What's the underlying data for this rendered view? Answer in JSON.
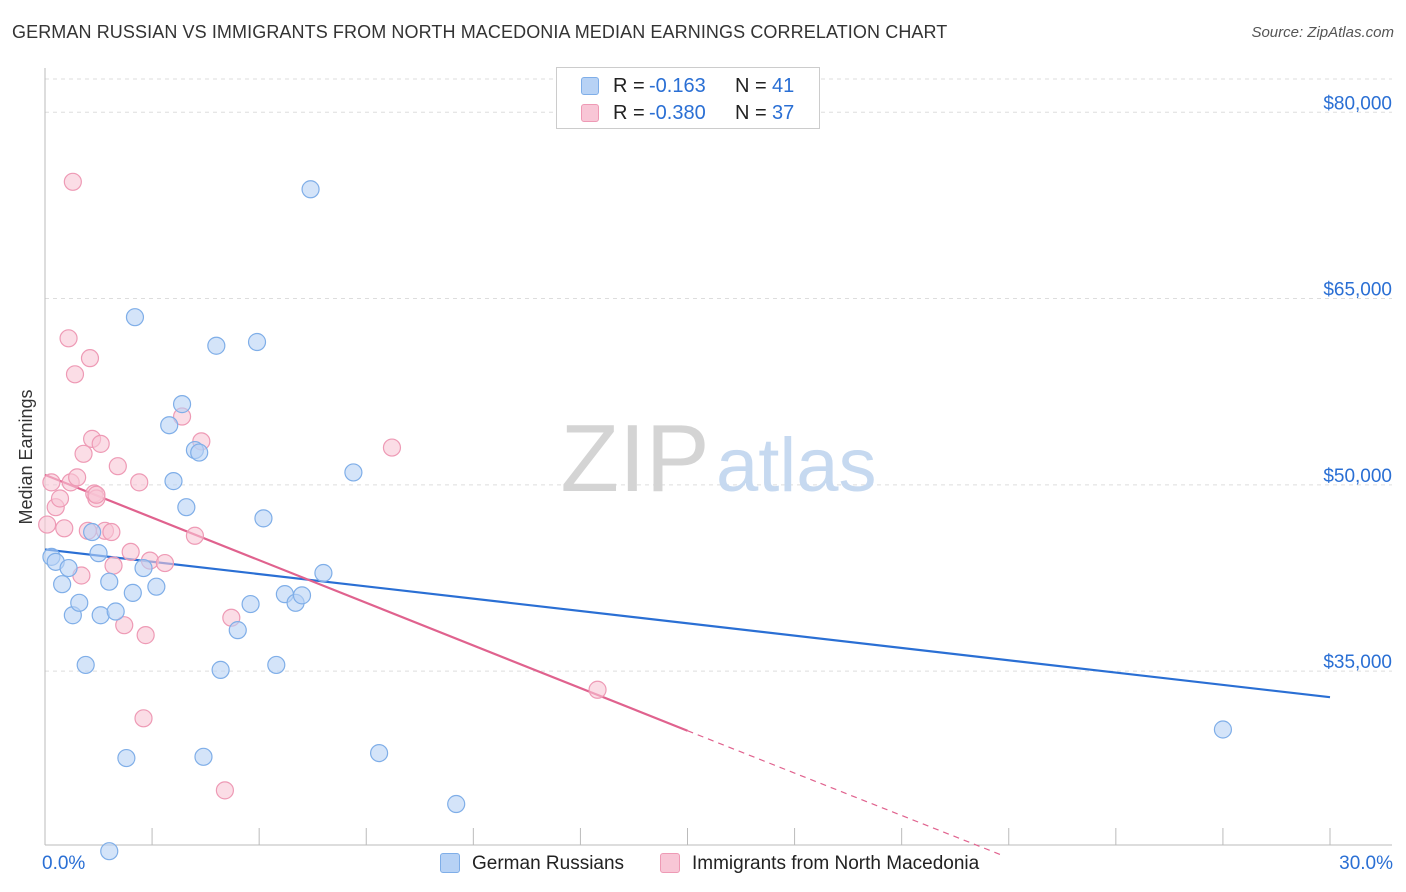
{
  "header": {
    "title": "GERMAN RUSSIAN VS IMMIGRANTS FROM NORTH MACEDONIA MEDIAN EARNINGS CORRELATION CHART",
    "source": "Source: ZipAtlas.com"
  },
  "watermark": {
    "zip": "ZIP",
    "atlas": "atlas"
  },
  "legend": {
    "rows": [
      {
        "r_label": "R =",
        "r_value": "-0.163",
        "n_label": "N =",
        "n_value": "41"
      },
      {
        "r_label": "R =",
        "r_value": "-0.380",
        "n_label": "N =",
        "n_value": "37"
      }
    ]
  },
  "colors": {
    "blue_fill": "#b7d2f5",
    "blue_stroke": "#7faee8",
    "blue_line": "#2a6fd4",
    "pink_fill": "#f8c6d6",
    "pink_stroke": "#ee9ab5",
    "pink_line": "#e0628e",
    "grid": "#dddddd",
    "axis_text": "#2a6fd4"
  },
  "chart_data": {
    "type": "scatter",
    "title": "GERMAN RUSSIAN VS IMMIGRANTS FROM NORTH MACEDONIA MEDIAN EARNINGS CORRELATION CHART",
    "xlabel": "",
    "ylabel": "Median Earnings",
    "xlim": [
      0,
      30
    ],
    "ylim": [
      21000,
      83000
    ],
    "x_tick_labels": [
      {
        "value": 0,
        "label": "0.0%"
      },
      {
        "value": 30,
        "label": "30.0%"
      }
    ],
    "y_tick_labels": [
      {
        "value": 35000,
        "label": "$35,000"
      },
      {
        "value": 50000,
        "label": "$50,000"
      },
      {
        "value": 65000,
        "label": "$65,000"
      },
      {
        "value": 80000,
        "label": "$80,000"
      }
    ],
    "series": [
      {
        "name": "German Russians",
        "color_key": "blue",
        "points": [
          [
            0.15,
            44200
          ],
          [
            0.25,
            43800
          ],
          [
            0.4,
            42000
          ],
          [
            0.55,
            43300
          ],
          [
            0.65,
            39500
          ],
          [
            0.8,
            40500
          ],
          [
            0.95,
            35500
          ],
          [
            1.1,
            46200
          ],
          [
            1.25,
            44500
          ],
          [
            1.3,
            39500
          ],
          [
            1.5,
            42200
          ],
          [
            1.65,
            39800
          ],
          [
            1.9,
            28000
          ],
          [
            2.05,
            41300
          ],
          [
            2.1,
            63500
          ],
          [
            2.3,
            43300
          ],
          [
            2.6,
            41800
          ],
          [
            2.9,
            54800
          ],
          [
            3.0,
            50300
          ],
          [
            3.2,
            56500
          ],
          [
            3.3,
            48200
          ],
          [
            3.5,
            52800
          ],
          [
            3.6,
            52600
          ],
          [
            3.7,
            28100
          ],
          [
            4.0,
            61200
          ],
          [
            4.1,
            35100
          ],
          [
            4.5,
            38300
          ],
          [
            4.8,
            40400
          ],
          [
            4.95,
            61500
          ],
          [
            5.1,
            47300
          ],
          [
            5.4,
            35500
          ],
          [
            5.6,
            41200
          ],
          [
            5.85,
            40500
          ],
          [
            6.0,
            41100
          ],
          [
            6.2,
            73800
          ],
          [
            6.5,
            42900
          ],
          [
            7.2,
            51000
          ],
          [
            7.8,
            28400
          ],
          [
            9.6,
            24300
          ],
          [
            1.5,
            20500
          ],
          [
            27.5,
            30300
          ]
        ]
      },
      {
        "name": "Immigrants from North Macedonia",
        "color_key": "pink",
        "points": [
          [
            0.05,
            46800
          ],
          [
            0.15,
            50200
          ],
          [
            0.25,
            48200
          ],
          [
            0.35,
            48900
          ],
          [
            0.45,
            46500
          ],
          [
            0.55,
            61800
          ],
          [
            0.6,
            50200
          ],
          [
            0.65,
            74400
          ],
          [
            0.7,
            58900
          ],
          [
            0.75,
            50600
          ],
          [
            0.85,
            42700
          ],
          [
            0.9,
            52500
          ],
          [
            1.0,
            46300
          ],
          [
            1.05,
            60200
          ],
          [
            1.1,
            53700
          ],
          [
            1.15,
            49300
          ],
          [
            1.2,
            48900
          ],
          [
            1.3,
            53300
          ],
          [
            1.4,
            46300
          ],
          [
            1.55,
            46200
          ],
          [
            1.6,
            43500
          ],
          [
            1.7,
            51500
          ],
          [
            1.85,
            38700
          ],
          [
            2.0,
            44600
          ],
          [
            2.2,
            50200
          ],
          [
            2.3,
            31200
          ],
          [
            2.35,
            37900
          ],
          [
            2.45,
            43900
          ],
          [
            2.8,
            43700
          ],
          [
            3.2,
            55500
          ],
          [
            3.5,
            45900
          ],
          [
            3.65,
            53500
          ],
          [
            4.2,
            25400
          ],
          [
            4.35,
            39300
          ],
          [
            8.1,
            53000
          ],
          [
            12.9,
            33500
          ],
          [
            1.2,
            49200
          ]
        ]
      }
    ],
    "trendlines": [
      {
        "series": "German Russians",
        "x1": 0,
        "y1": 44800,
        "x2": 30,
        "y2": 32900,
        "style": "solid"
      },
      {
        "series": "Immigrants from North Macedonia",
        "x1": 0,
        "y1": 50800,
        "x2": 15,
        "y2": 30200,
        "style": "solid"
      },
      {
        "series": "Immigrants from North Macedonia",
        "x1": 15,
        "y1": 30200,
        "x2": 22.4,
        "y2": 20100,
        "style": "dashed"
      }
    ],
    "grid": true,
    "legend_position": "top-center"
  }
}
